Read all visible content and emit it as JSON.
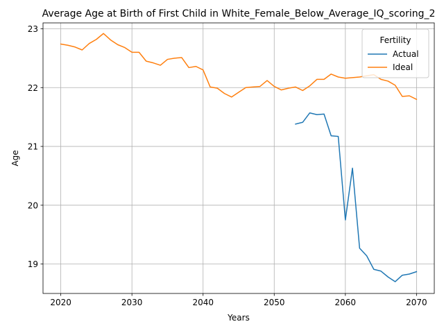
{
  "chart_data": {
    "type": "line",
    "title": "Average Age at Birth of First Child in White_Female_Below_Average_IQ_scoring_2",
    "xlabel": "Years",
    "ylabel": "Age",
    "xlim": [
      2017.5,
      2072.5
    ],
    "ylim": [
      18.5,
      23.1
    ],
    "xticks": [
      2020,
      2030,
      2040,
      2050,
      2060,
      2070
    ],
    "yticks": [
      19,
      20,
      21,
      22,
      23
    ],
    "grid": true,
    "legend": {
      "title": "Fertility",
      "placement": "top-right"
    },
    "series": [
      {
        "name": "Actual",
        "color": "#1f77b4",
        "x": [
          2053,
          2054,
          2055,
          2056,
          2057,
          2058,
          2059,
          2060,
          2061,
          2062,
          2063,
          2064,
          2065,
          2066,
          2067,
          2068,
          2069,
          2070
        ],
        "y": [
          21.38,
          21.41,
          21.57,
          21.54,
          21.55,
          21.18,
          21.17,
          19.75,
          20.63,
          19.27,
          19.14,
          18.91,
          18.88,
          18.78,
          18.7,
          18.81,
          18.83,
          18.87
        ]
      },
      {
        "name": "Ideal",
        "color": "#ff7f0e",
        "x": [
          2020,
          2021,
          2022,
          2023,
          2024,
          2025,
          2026,
          2027,
          2028,
          2029,
          2030,
          2031,
          2032,
          2033,
          2034,
          2035,
          2036,
          2037,
          2038,
          2039,
          2040,
          2041,
          2042,
          2043,
          2044,
          2045,
          2046,
          2047,
          2048,
          2049,
          2050,
          2051,
          2052,
          2053,
          2054,
          2055,
          2056,
          2057,
          2058,
          2059,
          2060,
          2061,
          2062,
          2063,
          2064,
          2065,
          2066,
          2067,
          2068,
          2069,
          2070
        ],
        "y": [
          22.74,
          22.72,
          22.69,
          22.64,
          22.75,
          22.82,
          22.92,
          22.81,
          22.73,
          22.68,
          22.6,
          22.6,
          22.45,
          22.42,
          22.38,
          22.48,
          22.5,
          22.51,
          22.34,
          22.36,
          22.3,
          22.01,
          21.99,
          21.9,
          21.84,
          21.92,
          22.0,
          22.01,
          22.02,
          22.12,
          22.02,
          21.96,
          21.99,
          22.01,
          21.95,
          22.03,
          22.14,
          22.14,
          22.23,
          22.18,
          22.16,
          22.17,
          22.18,
          22.2,
          22.22,
          22.14,
          22.11,
          22.04,
          21.85,
          21.86,
          21.8
        ]
      }
    ]
  }
}
